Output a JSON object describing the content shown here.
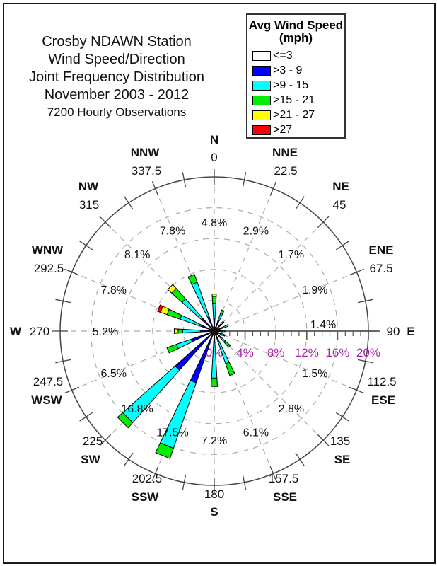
{
  "title_block": {
    "lines": [
      "Crosby NDAWN Station",
      "Wind Speed/Direction",
      "Joint Frequency Distribution",
      "November 2003 - 2012",
      "7200 Hourly Observations"
    ]
  },
  "legend": {
    "title_line1": "Avg Wind Speed",
    "title_line2": "(mph)",
    "items": [
      {
        "label": "<=3",
        "color": "#FFFFFF"
      },
      {
        "label": ">3 - 9",
        "color": "#0000FF"
      },
      {
        "label": ">9 - 15",
        "color": "#00FFFF"
      },
      {
        "label": ">15 - 21",
        "color": "#00EE00"
      },
      {
        "label": ">21 - 27",
        "color": "#FFFF00"
      },
      {
        "label": ">27",
        "color": "#FF0000"
      }
    ]
  },
  "chart_data": {
    "type": "wind-rose-stacked-bar",
    "units": "percent frequency of hourly observations",
    "radial_axis": {
      "tick_labels": [
        "0%",
        "4%",
        "8%",
        "12%",
        "16%",
        "20%"
      ],
      "tick_values": [
        0,
        4,
        8,
        12,
        16,
        20
      ],
      "max": 20,
      "minor_tick_step": 1,
      "dashed_rings": [
        4,
        8,
        12,
        16
      ],
      "label_color": "#AA22AA"
    },
    "speed_bins": [
      "<=3",
      ">3 - 9",
      ">9 - 15",
      ">15 - 21",
      ">21 - 27",
      ">27"
    ],
    "bin_colors": [
      "#FFFFFF",
      "#0000FF",
      "#00FFFF",
      "#00EE00",
      "#FFFF00",
      "#FF0000"
    ],
    "directions": [
      {
        "name": "N",
        "degrees": "0",
        "angle": 0,
        "total": 4.8,
        "label": "4.8%",
        "segments": [
          0.1,
          1.5,
          2.0,
          0.9,
          0.3,
          0
        ]
      },
      {
        "name": "NNE",
        "degrees": "22.5",
        "angle": 22.5,
        "total": 2.9,
        "label": "2.9%",
        "segments": [
          0.1,
          1.4,
          1.0,
          0.4,
          0,
          0
        ]
      },
      {
        "name": "NE",
        "degrees": "45",
        "angle": 45,
        "total": 1.7,
        "label": "1.7%",
        "segments": [
          0.1,
          0.9,
          0.7,
          0,
          0,
          0
        ]
      },
      {
        "name": "ENE",
        "degrees": "67.5",
        "angle": 67.5,
        "total": 1.9,
        "label": "1.9%",
        "segments": [
          0.1,
          0.9,
          0.9,
          0,
          0,
          0
        ]
      },
      {
        "name": "E",
        "degrees": "90",
        "angle": 90,
        "total": 1.4,
        "label": "1.4%",
        "segments": [
          0.1,
          0.7,
          0.6,
          0,
          0,
          0
        ]
      },
      {
        "name": "ESE",
        "degrees": "112.5",
        "angle": 112.5,
        "total": 1.5,
        "label": "1.5%",
        "segments": [
          0.1,
          0.8,
          0.6,
          0,
          0,
          0
        ]
      },
      {
        "name": "SE",
        "degrees": "135",
        "angle": 135,
        "total": 2.8,
        "label": "2.8%",
        "segments": [
          0.1,
          0.8,
          1.0,
          0.9,
          0,
          0
        ]
      },
      {
        "name": "SSE",
        "degrees": "157.5",
        "angle": 157.5,
        "total": 6.1,
        "label": "6.1%",
        "segments": [
          0.1,
          1.4,
          3.0,
          1.6,
          0,
          0
        ]
      },
      {
        "name": "S",
        "degrees": "180",
        "angle": 180,
        "total": 7.2,
        "label": "7.2%",
        "segments": [
          0.1,
          1.4,
          4.6,
          1.1,
          0,
          0
        ]
      },
      {
        "name": "SSW",
        "degrees": "202.5",
        "angle": 202.5,
        "total": 17.5,
        "label": "17.5%",
        "segments": [
          0.1,
          7.0,
          9.0,
          1.4,
          0,
          0
        ]
      },
      {
        "name": "SW",
        "degrees": "225",
        "angle": 225,
        "total": 16.8,
        "label": "16.8%",
        "segments": [
          0.1,
          6.7,
          9.1,
          0.9,
          0,
          0
        ]
      },
      {
        "name": "WSW",
        "degrees": "247.5",
        "angle": 247.5,
        "total": 6.5,
        "label": "6.5%",
        "segments": [
          0.1,
          3.1,
          2.0,
          1.3,
          0,
          0
        ]
      },
      {
        "name": "W",
        "degrees": "270",
        "angle": 270,
        "total": 5.2,
        "label": "5.2%",
        "segments": [
          0.1,
          1.7,
          2.3,
          0.6,
          0.5,
          0
        ]
      },
      {
        "name": "WNW",
        "degrees": "292.5",
        "angle": 292.5,
        "total": 7.8,
        "label": "7.8%",
        "segments": [
          0.1,
          1.7,
          2.9,
          1.8,
          0.9,
          0.4
        ]
      },
      {
        "name": "NW",
        "degrees": "315",
        "angle": 315,
        "total": 8.1,
        "label": "8.1%",
        "segments": [
          0.1,
          2.1,
          3.4,
          1.8,
          0.7,
          0
        ]
      },
      {
        "name": "NNW",
        "degrees": "337.5",
        "angle": 337.5,
        "total": 7.8,
        "label": "7.8%",
        "segments": [
          0.1,
          1.9,
          4.7,
          1.1,
          0,
          0
        ]
      }
    ]
  }
}
